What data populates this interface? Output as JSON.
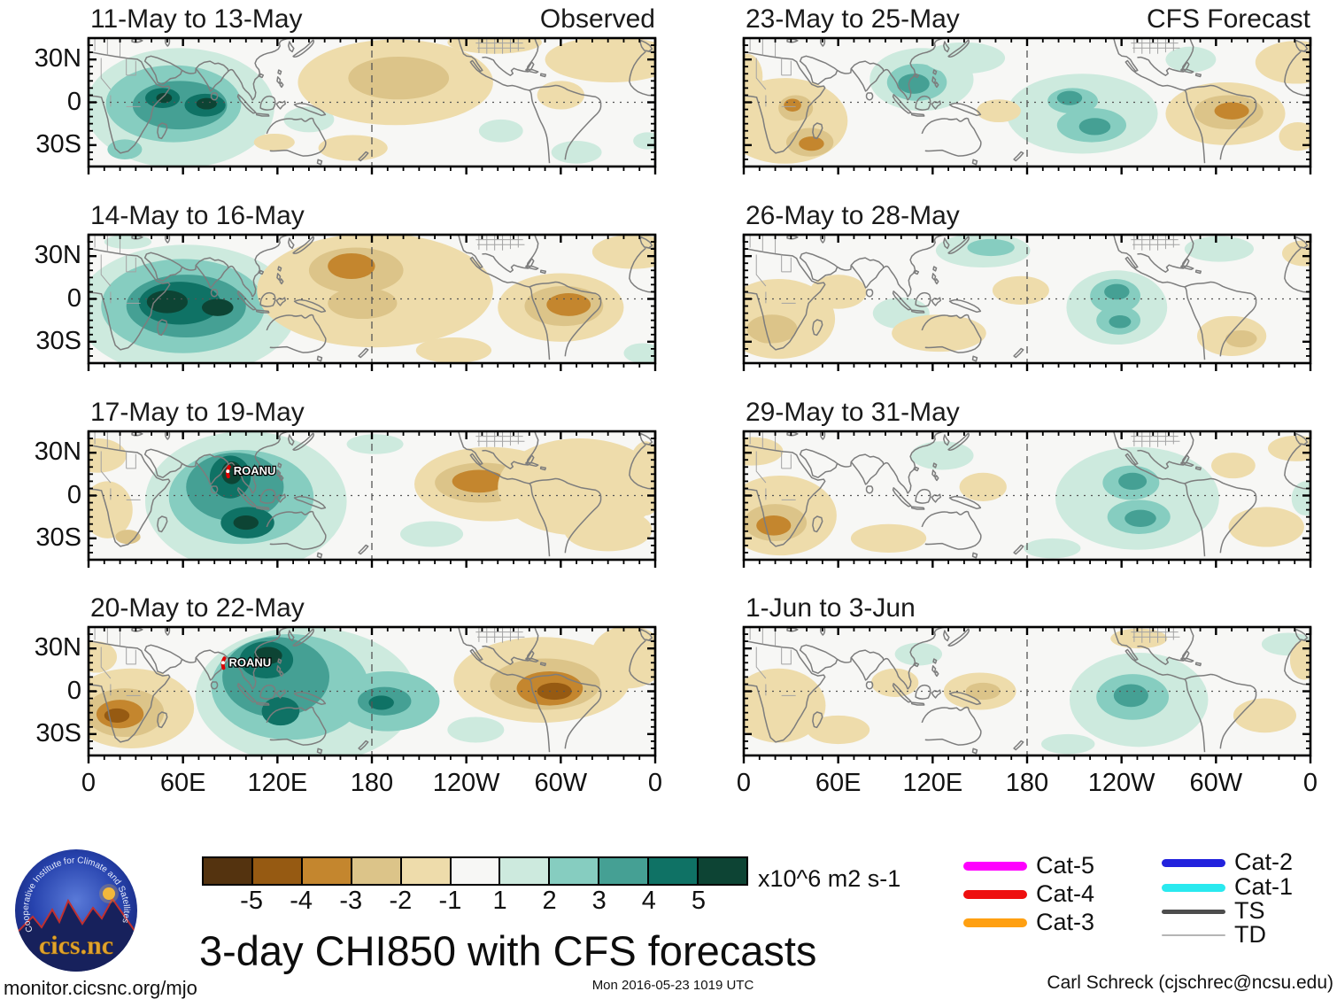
{
  "title": "3-day CHI850 with CFS forecasts",
  "footer": {
    "left": "monitor.cicsnc.org/mjo",
    "center": "Mon 2016-05-23 1019 UTC",
    "right": "Carl Schreck (cjschrec@ncsu.edu)"
  },
  "logo": {
    "ring_text": "Cooperative Institute for Climate and Satellites",
    "name": "cics.nc"
  },
  "legend": {
    "items": [
      {
        "label": "Cat-5",
        "color": "#ff00ff",
        "thickness": 10
      },
      {
        "label": "Cat-4",
        "color": "#ee0f0f",
        "thickness": 10
      },
      {
        "label": "Cat-3",
        "color": "#ffa012",
        "thickness": 10
      },
      {
        "label": "Cat-2",
        "color": "#2222dd",
        "thickness": 9
      },
      {
        "label": "Cat-1",
        "color": "#2ae9ef",
        "thickness": 9
      },
      {
        "label": "TS",
        "color": "#4d4d4d",
        "thickness": 5
      },
      {
        "label": "TD",
        "color": "#b5b5b5",
        "thickness": 2
      }
    ]
  },
  "chart_data": {
    "type": "contour_map_small_multiples",
    "variable": "3-day CHI850 anomaly",
    "units": "x10^6 m2 s-1",
    "map_bg": "#f7f7f5",
    "column_headers": [
      "Observed",
      "CFS Forecast"
    ],
    "x_tick_labels": [
      "0",
      "60E",
      "120E",
      "180",
      "120W",
      "60W",
      "0"
    ],
    "y_tick_labels": [
      "30N",
      "0",
      "30S"
    ],
    "colorbar_tick_labels": [
      "-5",
      "-4",
      "-3",
      "-2",
      "-1",
      "1",
      "2",
      "3",
      "4",
      "5"
    ],
    "colorbar_colors": [
      "#54330f",
      "#965a12",
      "#c4862e",
      "#dcc489",
      "#eedcab",
      "#f7f7f5",
      "#cdeade",
      "#86cdc0",
      "#45a094",
      "#0f7265",
      "#0d4434"
    ],
    "panels": [
      {
        "title": "11-May to 13-May",
        "corner_label": "Observed",
        "anomalies": [
          [
            58,
            -4,
            60,
            42,
            1
          ],
          [
            54,
            -1,
            43,
            27,
            2
          ],
          [
            58,
            -2,
            30,
            17,
            3
          ],
          [
            47,
            3,
            11,
            7,
            4
          ],
          [
            74,
            -2,
            13,
            8,
            4
          ],
          [
            48,
            3,
            5,
            3.5,
            5
          ],
          [
            75,
            -1,
            6.5,
            4,
            5
          ],
          [
            23,
            -33,
            11,
            7,
            2
          ],
          [
            140,
            -12,
            16,
            9,
            1
          ],
          [
            262,
            -20,
            14,
            8,
            1
          ],
          [
            310,
            -35,
            16,
            8,
            1
          ],
          [
            355,
            -27,
            9,
            6,
            1
          ],
          [
            195,
            14,
            62,
            30,
            -1
          ],
          [
            197,
            17,
            32,
            15,
            -2
          ],
          [
            258,
            42,
            30,
            8,
            -1
          ],
          [
            332,
            30,
            42,
            16,
            -1
          ],
          [
            118,
            -28,
            13,
            6,
            -1
          ],
          [
            168,
            -32,
            22,
            9,
            -1
          ],
          [
            300,
            5,
            15,
            10,
            -1
          ]
        ],
        "storms": []
      },
      {
        "title": "14-May to 16-May",
        "corner_label": null,
        "anomalies": [
          [
            62,
            -8,
            70,
            46,
            1
          ],
          [
            60,
            -5,
            52,
            33,
            2
          ],
          [
            62,
            -5,
            38,
            22,
            3
          ],
          [
            58,
            -3,
            26,
            15,
            4
          ],
          [
            50,
            -2,
            13,
            8,
            5
          ],
          [
            82,
            -6,
            10,
            6,
            5
          ],
          [
            352,
            -38,
            12,
            7,
            1
          ],
          [
            25,
            40,
            15,
            5,
            1
          ],
          [
            182,
            6,
            75,
            40,
            -1
          ],
          [
            170,
            20,
            30,
            16,
            -2
          ],
          [
            167,
            23,
            15,
            9,
            -3
          ],
          [
            174,
            -3,
            22,
            11,
            -2
          ],
          [
            300,
            -6,
            40,
            24,
            -1
          ],
          [
            302,
            -5,
            25,
            14,
            -2
          ],
          [
            305,
            -4,
            14,
            8,
            -3
          ],
          [
            346,
            33,
            26,
            12,
            -1
          ],
          [
            232,
            -36,
            24,
            9,
            -1
          ]
        ],
        "storms": []
      },
      {
        "title": "17-May to 19-May",
        "corner_label": null,
        "anomalies": [
          [
            100,
            -4,
            64,
            49,
            1
          ],
          [
            97,
            -1,
            46,
            33,
            2
          ],
          [
            93,
            6,
            31,
            24,
            3
          ],
          [
            90,
            13,
            13,
            15,
            4
          ],
          [
            91,
            16,
            6.5,
            8,
            5
          ],
          [
            101,
            -19,
            17,
            11,
            4
          ],
          [
            100,
            -19,
            8,
            5,
            5
          ],
          [
            218,
            -27,
            20,
            9,
            1
          ],
          [
            182,
            36,
            18,
            7,
            1
          ],
          [
            255,
            8,
            48,
            26,
            -1
          ],
          [
            250,
            9,
            30,
            14,
            -2
          ],
          [
            248,
            10,
            17,
            8,
            -3
          ],
          [
            287,
            -3,
            22,
            13,
            -2
          ],
          [
            312,
            6,
            52,
            34,
            -1
          ],
          [
            330,
            -24,
            28,
            15,
            -1
          ],
          [
            12,
            -10,
            16,
            20,
            -1
          ],
          [
            25,
            -29,
            8,
            5,
            -2
          ],
          [
            6,
            28,
            18,
            12,
            -1
          ],
          [
            354,
            12,
            12,
            26,
            -1
          ]
        ],
        "storms": [
          {
            "name": "ROANU",
            "lon": 91,
            "lat": 17
          }
        ]
      },
      {
        "title": "20-May to 22-May",
        "corner_label": null,
        "anomalies": [
          [
            138,
            -3,
            70,
            48,
            1
          ],
          [
            128,
            3,
            50,
            37,
            2
          ],
          [
            119,
            10,
            34,
            28,
            3
          ],
          [
            113,
            22,
            17,
            13,
            4
          ],
          [
            114,
            25,
            9,
            6,
            5
          ],
          [
            122,
            -14,
            12,
            10,
            4
          ],
          [
            190,
            -7,
            33,
            21,
            2
          ],
          [
            188,
            -7,
            17,
            10,
            3
          ],
          [
            186,
            -8,
            8,
            5,
            4
          ],
          [
            246,
            -27,
            18,
            9,
            1
          ],
          [
            27,
            -12,
            40,
            28,
            -1
          ],
          [
            23,
            -15,
            25,
            17,
            -2
          ],
          [
            20,
            -16,
            15,
            10,
            -3
          ],
          [
            18,
            -17,
            8,
            5,
            -4
          ],
          [
            288,
            8,
            56,
            30,
            -1
          ],
          [
            290,
            5,
            35,
            18,
            -2
          ],
          [
            293,
            2,
            21,
            12,
            -3
          ],
          [
            296,
            0,
            11,
            6,
            -4
          ],
          [
            343,
            24,
            24,
            22,
            -1
          ],
          [
            5,
            24,
            13,
            11,
            -1
          ]
        ],
        "storms": [
          {
            "name": "ROANU",
            "lon": 88,
            "lat": 20
          }
        ]
      },
      {
        "title": "23-May to 25-May",
        "corner_label": "CFS Forecast",
        "anomalies": [
          [
            113,
            16,
            33,
            22,
            1
          ],
          [
            110,
            14,
            19,
            13,
            2
          ],
          [
            108,
            13,
            10,
            7,
            3
          ],
          [
            140,
            31,
            26,
            11,
            1
          ],
          [
            215,
            -8,
            48,
            28,
            1
          ],
          [
            209,
            1,
            16,
            9,
            2
          ],
          [
            207,
            3,
            8,
            5,
            3
          ],
          [
            221,
            -16,
            22,
            12,
            2
          ],
          [
            223,
            -17,
            10,
            6,
            3
          ],
          [
            284,
            30,
            16,
            9,
            1
          ],
          [
            26,
            -13,
            40,
            30,
            -1
          ],
          [
            33,
            -4,
            11,
            9,
            -2
          ],
          [
            31,
            -2,
            5.5,
            4.5,
            -3
          ],
          [
            42,
            -28,
            15,
            10,
            -2
          ],
          [
            43,
            -29,
            8,
            5,
            -3
          ],
          [
            306,
            -8,
            38,
            22,
            -1
          ],
          [
            308,
            -7,
            22,
            12,
            -2
          ],
          [
            310,
            -6,
            11,
            6,
            -3
          ],
          [
            351,
            28,
            26,
            15,
            -1
          ],
          [
            2,
            18,
            10,
            16,
            -1
          ],
          [
            162,
            -6,
            14,
            8,
            -1
          ],
          [
            352,
            -24,
            12,
            10,
            -1
          ]
        ],
        "storms": []
      },
      {
        "title": "26-May to 28-May",
        "corner_label": null,
        "anomalies": [
          [
            152,
            34,
            30,
            12,
            1
          ],
          [
            157,
            36,
            15,
            6,
            2
          ],
          [
            237,
            -6,
            32,
            26,
            1
          ],
          [
            236,
            2,
            16,
            12,
            2
          ],
          [
            237,
            5,
            8,
            5.5,
            3
          ],
          [
            238,
            -15,
            14,
            10,
            2
          ],
          [
            239,
            -16,
            7,
            4.5,
            3
          ],
          [
            302,
            35,
            22,
            9,
            1
          ],
          [
            100,
            -10,
            18,
            11,
            1
          ],
          [
            22,
            -14,
            36,
            28,
            -1
          ],
          [
            18,
            -21,
            16,
            10,
            -2
          ],
          [
            15,
            -26,
            8,
            5,
            -2
          ],
          [
            310,
            -26,
            22,
            14,
            -1
          ],
          [
            316,
            -28,
            10,
            6,
            -2
          ],
          [
            124,
            -24,
            30,
            13,
            -1
          ],
          [
            176,
            6,
            18,
            10,
            -1
          ],
          [
            356,
            32,
            14,
            9,
            -1
          ],
          [
            60,
            5,
            18,
            12,
            -1
          ]
        ],
        "storms": []
      },
      {
        "title": "29-May to 31-May",
        "corner_label": null,
        "anomalies": [
          [
            126,
            28,
            20,
            10,
            1
          ],
          [
            250,
            -2,
            52,
            36,
            1
          ],
          [
            246,
            9,
            18,
            12,
            2
          ],
          [
            247,
            10,
            9,
            6,
            3
          ],
          [
            251,
            -15,
            20,
            12,
            2
          ],
          [
            252,
            -16,
            10,
            6,
            3
          ],
          [
            196,
            -37,
            18,
            7,
            1
          ],
          [
            357,
            -2,
            9,
            12,
            1
          ],
          [
            23,
            -14,
            36,
            28,
            -1
          ],
          [
            20,
            -19,
            20,
            13,
            -2
          ],
          [
            19,
            -21,
            11,
            7,
            -3
          ],
          [
            5,
            31,
            20,
            10,
            -1
          ],
          [
            92,
            -30,
            24,
            10,
            -1
          ],
          [
            152,
            6,
            15,
            10,
            -1
          ],
          [
            332,
            -22,
            24,
            14,
            -1
          ],
          [
            351,
            33,
            18,
            9,
            -1
          ],
          [
            311,
            21,
            14,
            9,
            -1
          ]
        ],
        "storms": []
      },
      {
        "title": "1-Jun to 3-Jun",
        "corner_label": null,
        "anomalies": [
          [
            251,
            -6,
            44,
            33,
            1
          ],
          [
            247,
            -4,
            23,
            16,
            2
          ],
          [
            246,
            -3,
            11,
            8,
            3
          ],
          [
            346,
            33,
            17,
            8,
            1
          ],
          [
            206,
            -37,
            17,
            7,
            1
          ],
          [
            111,
            26,
            15,
            8,
            1
          ],
          [
            150,
            0,
            23,
            13,
            -1
          ],
          [
            152,
            0,
            11,
            6,
            -2
          ],
          [
            22,
            -10,
            30,
            26,
            -1
          ],
          [
            60,
            -27,
            20,
            10,
            -1
          ],
          [
            96,
            6,
            15,
            10,
            -1
          ],
          [
            331,
            -17,
            20,
            12,
            -1
          ],
          [
            356,
            22,
            9,
            14,
            -1
          ],
          [
            251,
            37,
            18,
            7,
            -1
          ]
        ],
        "storms": []
      }
    ]
  }
}
